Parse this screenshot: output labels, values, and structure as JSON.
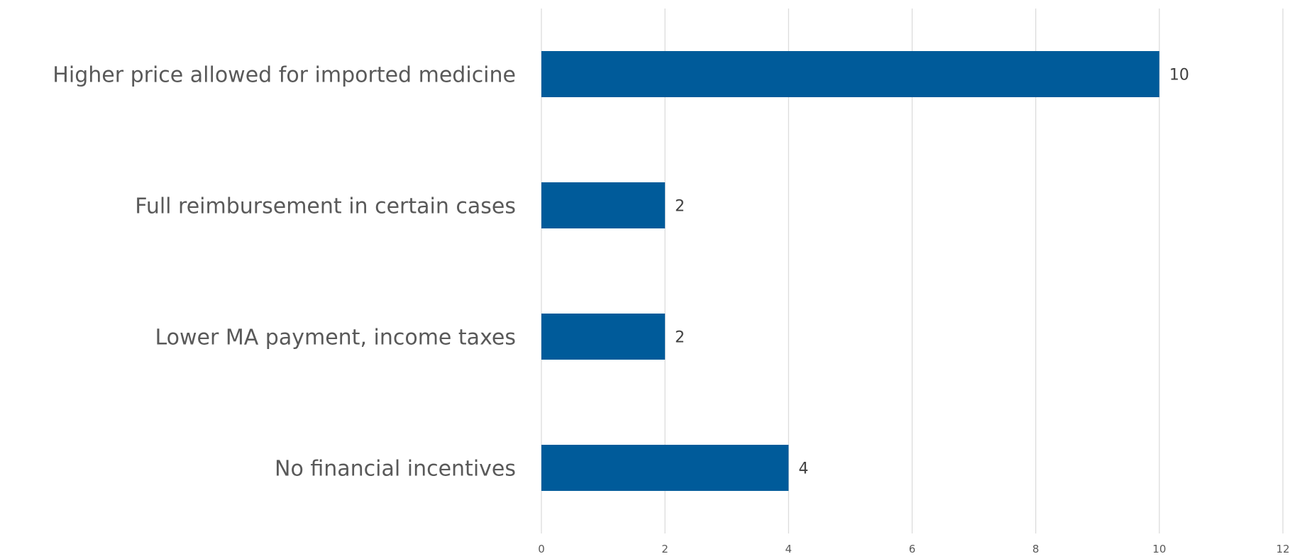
{
  "chart_data": {
    "type": "bar",
    "orientation": "horizontal",
    "categories": [
      "Higher price allowed for imported medicine",
      "Full reimbursement in certain cases",
      "Lower MA payment, income taxes",
      "No financial incentives"
    ],
    "values": [
      10,
      2,
      2,
      4
    ],
    "data_labels": [
      "10",
      "2",
      "2",
      "4"
    ],
    "xlim": [
      0,
      12
    ],
    "x_ticks": [
      0,
      2,
      4,
      6,
      8,
      10,
      12
    ],
    "x_tick_labels": [
      "0",
      "2",
      "4",
      "6",
      "8",
      "10",
      "12"
    ],
    "grid": true,
    "legend": "none",
    "title": "",
    "xlabel": "",
    "ylabel": "",
    "colors": {
      "bar": "#005b9a",
      "grid": "#d9d9d9",
      "category_text": "#595959",
      "value_text": "#404040"
    }
  }
}
